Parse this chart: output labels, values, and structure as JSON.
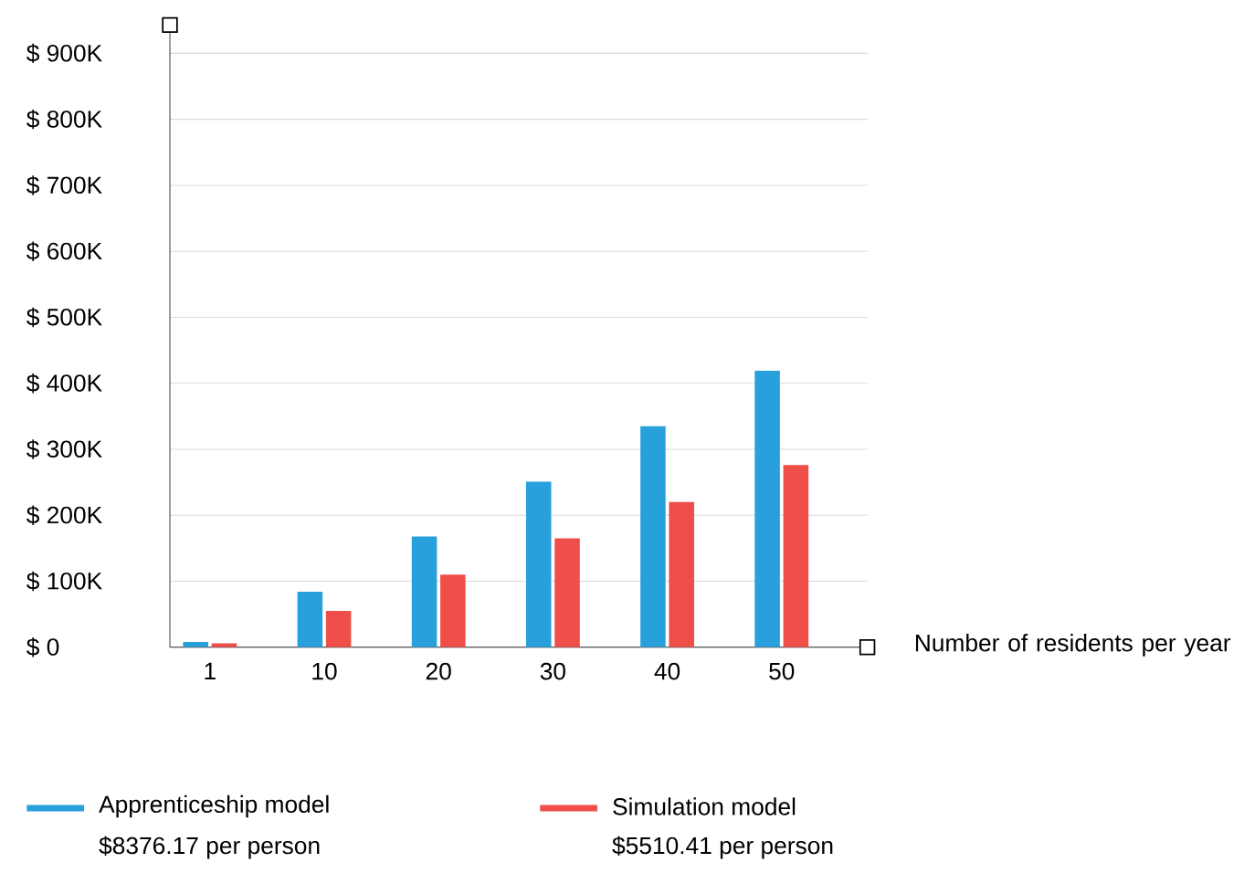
{
  "chart_data": {
    "type": "bar",
    "categories": [
      "1",
      "10",
      "20",
      "30",
      "40",
      "50"
    ],
    "series": [
      {
        "name": "Apprenticeship model",
        "color": "#27a0dc",
        "values": [
          8,
          84,
          168,
          251,
          335,
          419
        ]
      },
      {
        "name": "Simulation model",
        "color": "#f04e48",
        "values": [
          6,
          55,
          110,
          165,
          220,
          276
        ]
      }
    ],
    "xlabel": "Number of residents per year",
    "ylim": [
      0,
      943
    ],
    "yticks": [
      {
        "value": 0,
        "label": "$ 0"
      },
      {
        "value": 100,
        "label": "$ 100K"
      },
      {
        "value": 200,
        "label": "$ 200K"
      },
      {
        "value": 300,
        "label": "$ 300K"
      },
      {
        "value": 400,
        "label": "$ 400K"
      },
      {
        "value": 500,
        "label": "$ 500K"
      },
      {
        "value": 600,
        "label": "$ 600K"
      },
      {
        "value": 700,
        "label": "$ 700K"
      },
      {
        "value": 800,
        "label": "$ 800K"
      },
      {
        "value": 900,
        "label": "$ 900K"
      }
    ],
    "grid": "y",
    "legend": "bottom",
    "annotations": [
      "$8376.17 per person",
      "$5510.41 per person"
    ]
  }
}
